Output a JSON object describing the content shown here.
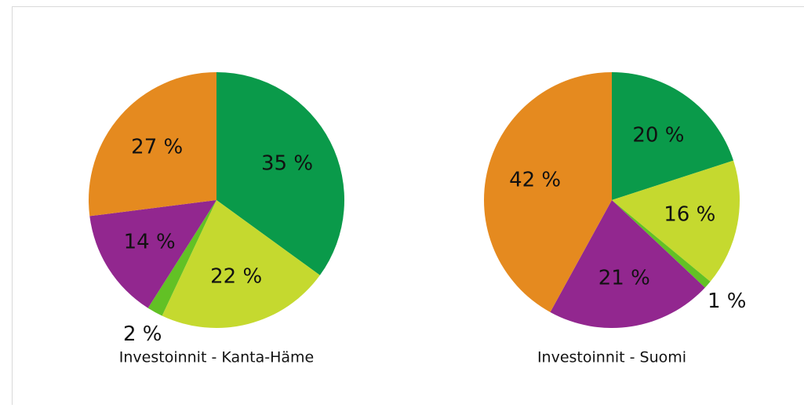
{
  "chart_data": [
    {
      "type": "pie",
      "title": "Investoinnit - Kanta-Häme",
      "values": [
        35,
        22,
        2,
        14,
        27
      ],
      "value_labels": [
        "35 %",
        "22 %",
        "2 %",
        "14 %",
        "27 %"
      ],
      "colors": [
        "#0a9a4a",
        "#c5d92f",
        "#62c125",
        "#92278f",
        "#e58a1f"
      ]
    },
    {
      "type": "pie",
      "title": "Investoinnit - Suomi",
      "values": [
        20,
        16,
        1,
        21,
        42
      ],
      "value_labels": [
        "20 %",
        "16 %",
        "1 %",
        "21 %",
        "42 %"
      ],
      "colors": [
        "#0a9a4a",
        "#c5d92f",
        "#62c125",
        "#92278f",
        "#e58a1f"
      ]
    }
  ]
}
